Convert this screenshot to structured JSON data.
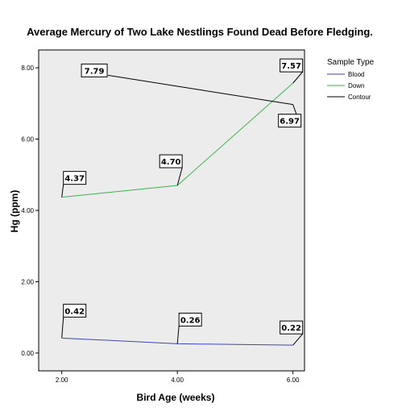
{
  "chart_data": {
    "type": "line",
    "title": "Average Mercury of Two Lake Nestlings Found Dead Before Fledging.",
    "xlabel": "Bird Age (weeks)",
    "ylabel": "Hg (ppm)",
    "x": [
      2,
      4,
      6
    ],
    "x_tick_labels": [
      "2.00",
      "4.00",
      "6.00"
    ],
    "xlim": [
      1.6,
      6.2
    ],
    "ylim": [
      -0.5,
      8.5
    ],
    "y_ticks": [
      0,
      2,
      4,
      6,
      8
    ],
    "y_tick_labels": [
      "0.00",
      "2.00",
      "4.00",
      "6.00",
      "8.00"
    ],
    "grid": false,
    "legend": {
      "title": "Sample Type",
      "placement": "right"
    },
    "series": [
      {
        "name": "Blood",
        "color": "#3b46b8",
        "values": [
          0.42,
          0.26,
          0.22
        ],
        "labels": [
          "0.42",
          "0.26",
          "0.22"
        ]
      },
      {
        "name": "Down",
        "color": "#3ab54a",
        "values": [
          4.37,
          4.7,
          7.57
        ],
        "labels": [
          "4.37",
          "4.70",
          "7.57"
        ]
      },
      {
        "name": "Contour",
        "color": "#000000",
        "values": [
          null,
          null,
          6.97
        ],
        "labels": [
          "",
          "",
          "6.97"
        ],
        "x_start": 2.8,
        "start_value": 7.79,
        "start_label": "7.79"
      }
    ],
    "plot_background": "#ececec"
  }
}
